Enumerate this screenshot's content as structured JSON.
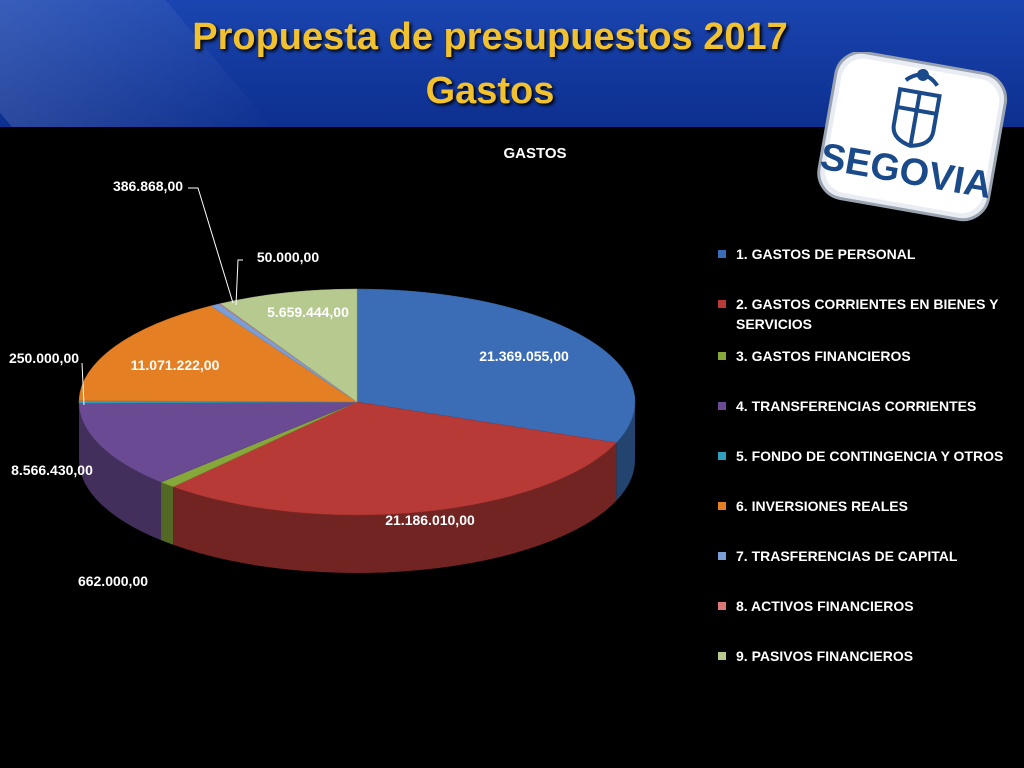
{
  "slide": {
    "title_line1": "Propuesta de presupuestos 2017",
    "title_line2": "Gastos",
    "logo_text": "SEGOVIA"
  },
  "chart_data": {
    "type": "pie",
    "title": "GASTOS",
    "legend_position": "right",
    "categories": [
      "1. GASTOS DE PERSONAL",
      "2. GASTOS CORRIENTES EN BIENES Y SERVICIOS",
      "3. GASTOS FINANCIEROS",
      "4. TRANSFERENCIAS CORRIENTES",
      "5. FONDO DE CONTINGENCIA Y OTROS",
      "6. INVERSIONES REALES",
      "7. TRASFERENCIAS DE CAPITAL",
      "8. ACTIVOS FINANCIEROS",
      "9. PASIVOS FINANCIEROS"
    ],
    "values": [
      21369055,
      21186010,
      662000,
      8566430,
      250000,
      11071222,
      386868,
      50000,
      5659444
    ],
    "labels": [
      "21.369.055,00",
      "21.186.010,00",
      "662.000,00",
      "8.566.430,00",
      "250.000,00",
      "11.071.222,00",
      "386.868,00",
      "50.000,00",
      "5.659.444,00"
    ],
    "colors": [
      "#3a6db5",
      "#b83a37",
      "#86a83a",
      "#6a4b93",
      "#2e9fbe",
      "#e57f24",
      "#7b9ed6",
      "#d97a78",
      "#b6c98e"
    ]
  }
}
